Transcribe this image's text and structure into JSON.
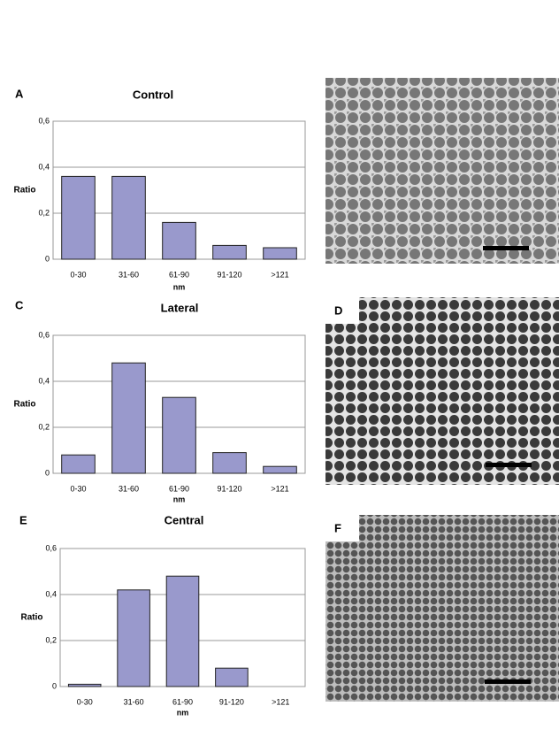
{
  "chart_data": [
    {
      "type": "bar",
      "panel": "A",
      "title": "Control",
      "x_label": "nm",
      "y_label": "Ratio",
      "categories": [
        "0-30",
        "31-60",
        "61-90",
        "91-120",
        ">121"
      ],
      "values": [
        0.36,
        0.36,
        0.16,
        0.06,
        0.05
      ],
      "color": "#9999cc",
      "ylim": [
        0,
        0.6
      ],
      "yticks": [
        0,
        {
          "value": 0.2,
          "label": "0,2"
        },
        {
          "value": 0.4,
          "label": "0,4"
        },
        {
          "value": 0.6,
          "label": "0,6"
        }
      ],
      "grid": true
    },
    {
      "type": "bar",
      "panel": "C",
      "title": "Lateral",
      "x_label": "nm",
      "y_label": "Ratio",
      "categories": [
        "0-30",
        "31-60",
        "61-90",
        "91-120",
        ">121"
      ],
      "values": [
        0.08,
        0.48,
        0.33,
        0.09,
        0.03
      ],
      "color": "#9999cc",
      "ylim": [
        0,
        0.6
      ],
      "yticks": [
        0,
        {
          "value": 0.2,
          "label": "0,2"
        },
        {
          "value": 0.4,
          "label": "0,4"
        },
        {
          "value": 0.6,
          "label": "0,6"
        }
      ],
      "grid": true
    },
    {
      "type": "bar",
      "panel": "E",
      "title": "Central",
      "x_label": "nm",
      "y_label": "Ratio",
      "categories": [
        "0-30",
        "31-60",
        "61-90",
        "91-120",
        ">121"
      ],
      "values": [
        0.01,
        0.42,
        0.48,
        0.08,
        0
      ],
      "color": "#9999cc",
      "ylim": [
        0,
        0.6
      ],
      "yticks": [
        0,
        {
          "value": 0.2,
          "label": "0,2"
        },
        {
          "value": 0.4,
          "label": "0,4"
        },
        {
          "value": 0.6,
          "label": "0,6"
        }
      ],
      "grid": true
    }
  ],
  "micrograph_labels": [
    "D",
    "F"
  ]
}
